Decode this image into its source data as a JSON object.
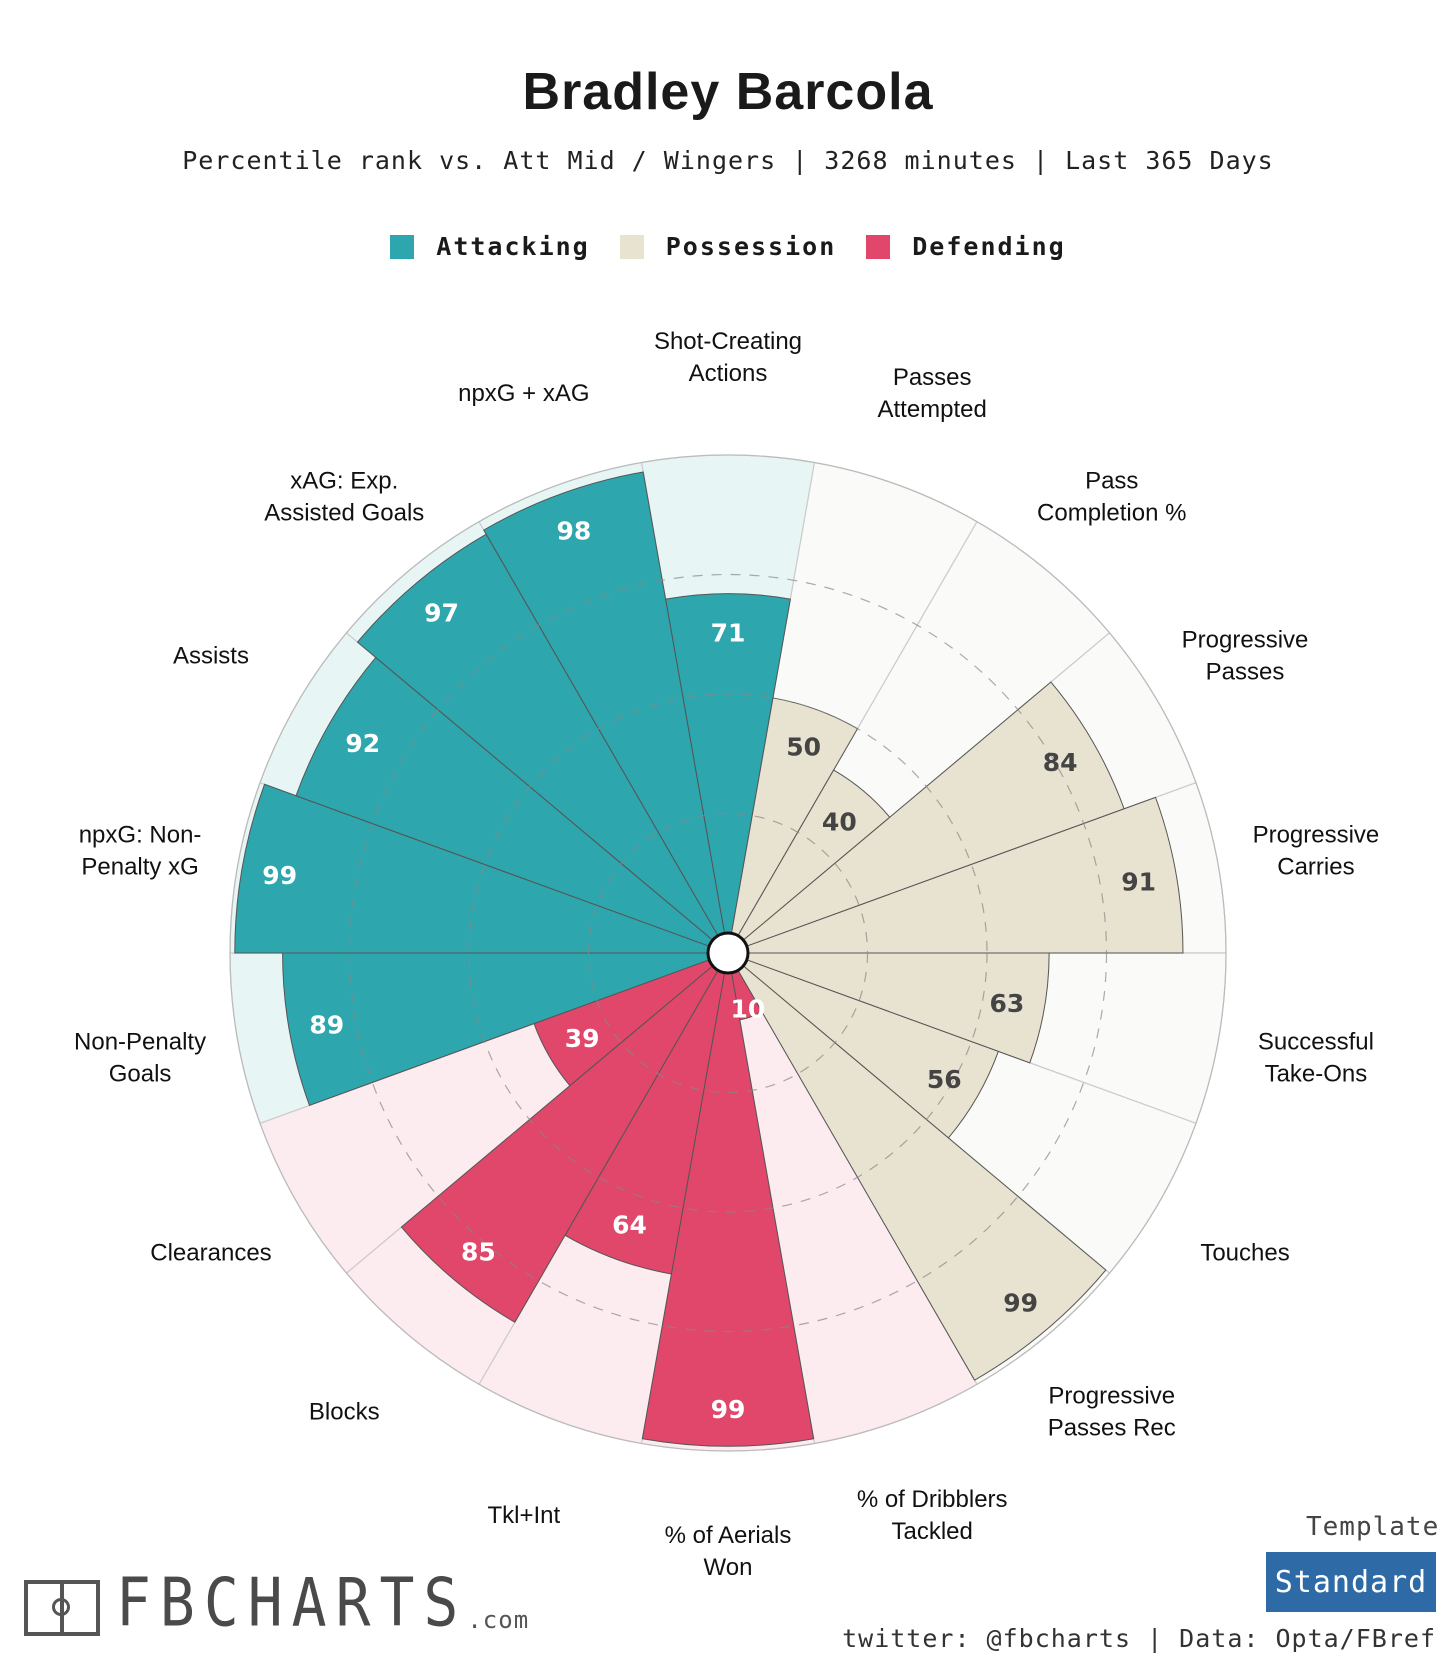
{
  "header": {
    "title": "Bradley Barcola",
    "subtitle": "Percentile rank vs. Att Mid / Wingers | 3268 minutes | Last 365 Days"
  },
  "legend": [
    {
      "label": "Attacking",
      "color": "#2ea6ad"
    },
    {
      "label": "Possession",
      "color": "#e8e2d0"
    },
    {
      "label": "Defending",
      "color": "#e0476a"
    }
  ],
  "chart_data": {
    "type": "polar-bar",
    "title": "Bradley Barcola",
    "scale_max": 100,
    "grid": true,
    "legend_position": "top",
    "categories": [
      {
        "label": "Shot-Creating Actions",
        "value": 71,
        "group": "Attacking"
      },
      {
        "label": "Passes Attempted",
        "value": 50,
        "group": "Possession"
      },
      {
        "label": "Pass Completion %",
        "value": 40,
        "group": "Possession"
      },
      {
        "label": "Progressive Passes",
        "value": 84,
        "group": "Possession"
      },
      {
        "label": "Progressive Carries",
        "value": 91,
        "group": "Possession"
      },
      {
        "label": "Successful Take-Ons",
        "value": 63,
        "group": "Possession"
      },
      {
        "label": "Touches",
        "value": 56,
        "group": "Possession"
      },
      {
        "label": "Progressive Passes Rec",
        "value": 99,
        "group": "Possession"
      },
      {
        "label": "% of Dribblers Tackled",
        "value": 10,
        "group": "Defending"
      },
      {
        "label": "% of Aerials Won",
        "value": 99,
        "group": "Defending"
      },
      {
        "label": "Tkl+Int",
        "value": 64,
        "group": "Defending"
      },
      {
        "label": "Blocks",
        "value": 85,
        "group": "Defending"
      },
      {
        "label": "Clearances",
        "value": 39,
        "group": "Defending"
      },
      {
        "label": "Non-Penalty Goals",
        "value": 89,
        "group": "Attacking"
      },
      {
        "label": "npxG: Non-Penalty xG",
        "value": 99,
        "group": "Attacking"
      },
      {
        "label": "Assists",
        "value": 92,
        "group": "Attacking"
      },
      {
        "label": "xAG: Exp. Assisted Goals",
        "value": 97,
        "group": "Attacking"
      },
      {
        "label": "npxG + xAG",
        "value": 98,
        "group": "Attacking"
      }
    ],
    "group_colors": {
      "Attacking": {
        "fill": "#2ea6ad",
        "bg": "#e8f5f5",
        "text": "#ffffff"
      },
      "Possession": {
        "fill": "#e8e2d0",
        "bg": "#fafaf8",
        "text": "#444444"
      },
      "Defending": {
        "fill": "#e0476a",
        "bg": "#fcebef",
        "text": "#ffffff"
      }
    }
  },
  "footer": {
    "logo_text": "FBCHARTS",
    "logo_suffix": ".com",
    "template_label": "Template",
    "template_value": "Standard",
    "credit": "twitter: @fbcharts | Data: Opta/FBref"
  }
}
